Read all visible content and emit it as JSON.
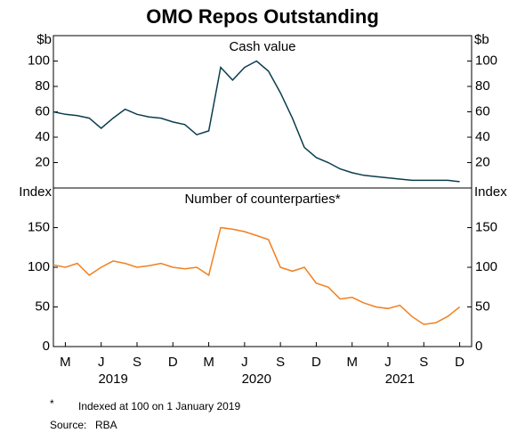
{
  "title": "OMO Repos Outstanding",
  "chart_data": [
    {
      "type": "line",
      "subtitle": "Cash value",
      "y_unit": "$b",
      "x": [
        "2019-02",
        "2019-03",
        "2019-04",
        "2019-05",
        "2019-06",
        "2019-07",
        "2019-08",
        "2019-09",
        "2019-10",
        "2019-11",
        "2019-12",
        "2020-01",
        "2020-02",
        "2020-03",
        "2020-04",
        "2020-05",
        "2020-06",
        "2020-07",
        "2020-08",
        "2020-09",
        "2020-10",
        "2020-11",
        "2020-12",
        "2021-01",
        "2021-02",
        "2021-03",
        "2021-04",
        "2021-05",
        "2021-06",
        "2021-07",
        "2021-08",
        "2021-09",
        "2021-10",
        "2021-11",
        "2021-12"
      ],
      "xlim": [
        "2019-02",
        "2022-01"
      ],
      "series": [
        {
          "name": "Cash value",
          "color": "#0b3d4e",
          "values": [
            60,
            58,
            57,
            55,
            47,
            55,
            62,
            58,
            56,
            55,
            52,
            50,
            42,
            45,
            95,
            85,
            95,
            100,
            92,
            75,
            55,
            32,
            24,
            20,
            15,
            12,
            10,
            9,
            8,
            7,
            6,
            6,
            6,
            6,
            5
          ]
        }
      ],
      "ylim": [
        0,
        120
      ],
      "yticks": [
        20,
        40,
        60,
        80,
        100
      ]
    },
    {
      "type": "line",
      "subtitle": "Number of counterparties*",
      "y_unit": "Index",
      "x": [
        "2019-02",
        "2019-03",
        "2019-04",
        "2019-05",
        "2019-06",
        "2019-07",
        "2019-08",
        "2019-09",
        "2019-10",
        "2019-11",
        "2019-12",
        "2020-01",
        "2020-02",
        "2020-03",
        "2020-04",
        "2020-05",
        "2020-06",
        "2020-07",
        "2020-08",
        "2020-09",
        "2020-10",
        "2020-11",
        "2020-12",
        "2021-01",
        "2021-02",
        "2021-03",
        "2021-04",
        "2021-05",
        "2021-06",
        "2021-07",
        "2021-08",
        "2021-09",
        "2021-10",
        "2021-11",
        "2021-12"
      ],
      "xlim": [
        "2019-02",
        "2022-01"
      ],
      "series": [
        {
          "name": "Number of counterparties",
          "color": "#f08020",
          "values": [
            103,
            100,
            105,
            90,
            100,
            108,
            105,
            100,
            102,
            105,
            100,
            98,
            100,
            90,
            150,
            148,
            145,
            140,
            135,
            100,
            95,
            100,
            80,
            75,
            60,
            62,
            55,
            50,
            48,
            52,
            38,
            28,
            30,
            38,
            50
          ]
        }
      ],
      "ylim": [
        0,
        200
      ],
      "yticks": [
        0,
        50,
        100,
        150
      ],
      "xticks": [
        {
          "value": "2019-03",
          "label": "M"
        },
        {
          "value": "2019-06",
          "label": "J"
        },
        {
          "value": "2019-09",
          "label": "S"
        },
        {
          "value": "2019-12",
          "label": "D"
        },
        {
          "value": "2020-03",
          "label": "M"
        },
        {
          "value": "2020-06",
          "label": "J"
        },
        {
          "value": "2020-09",
          "label": "S"
        },
        {
          "value": "2020-12",
          "label": "D"
        },
        {
          "value": "2021-03",
          "label": "M"
        },
        {
          "value": "2021-06",
          "label": "J"
        },
        {
          "value": "2021-09",
          "label": "S"
        },
        {
          "value": "2021-12",
          "label": "D"
        }
      ],
      "xgroups": [
        {
          "value": "2019-07",
          "label": "2019"
        },
        {
          "value": "2020-07",
          "label": "2020"
        },
        {
          "value": "2021-07",
          "label": "2021"
        }
      ]
    }
  ],
  "footnote": {
    "mark": "*",
    "text": "Indexed at 100 on 1 January 2019"
  },
  "source": {
    "label": "Source:",
    "text": "RBA"
  }
}
